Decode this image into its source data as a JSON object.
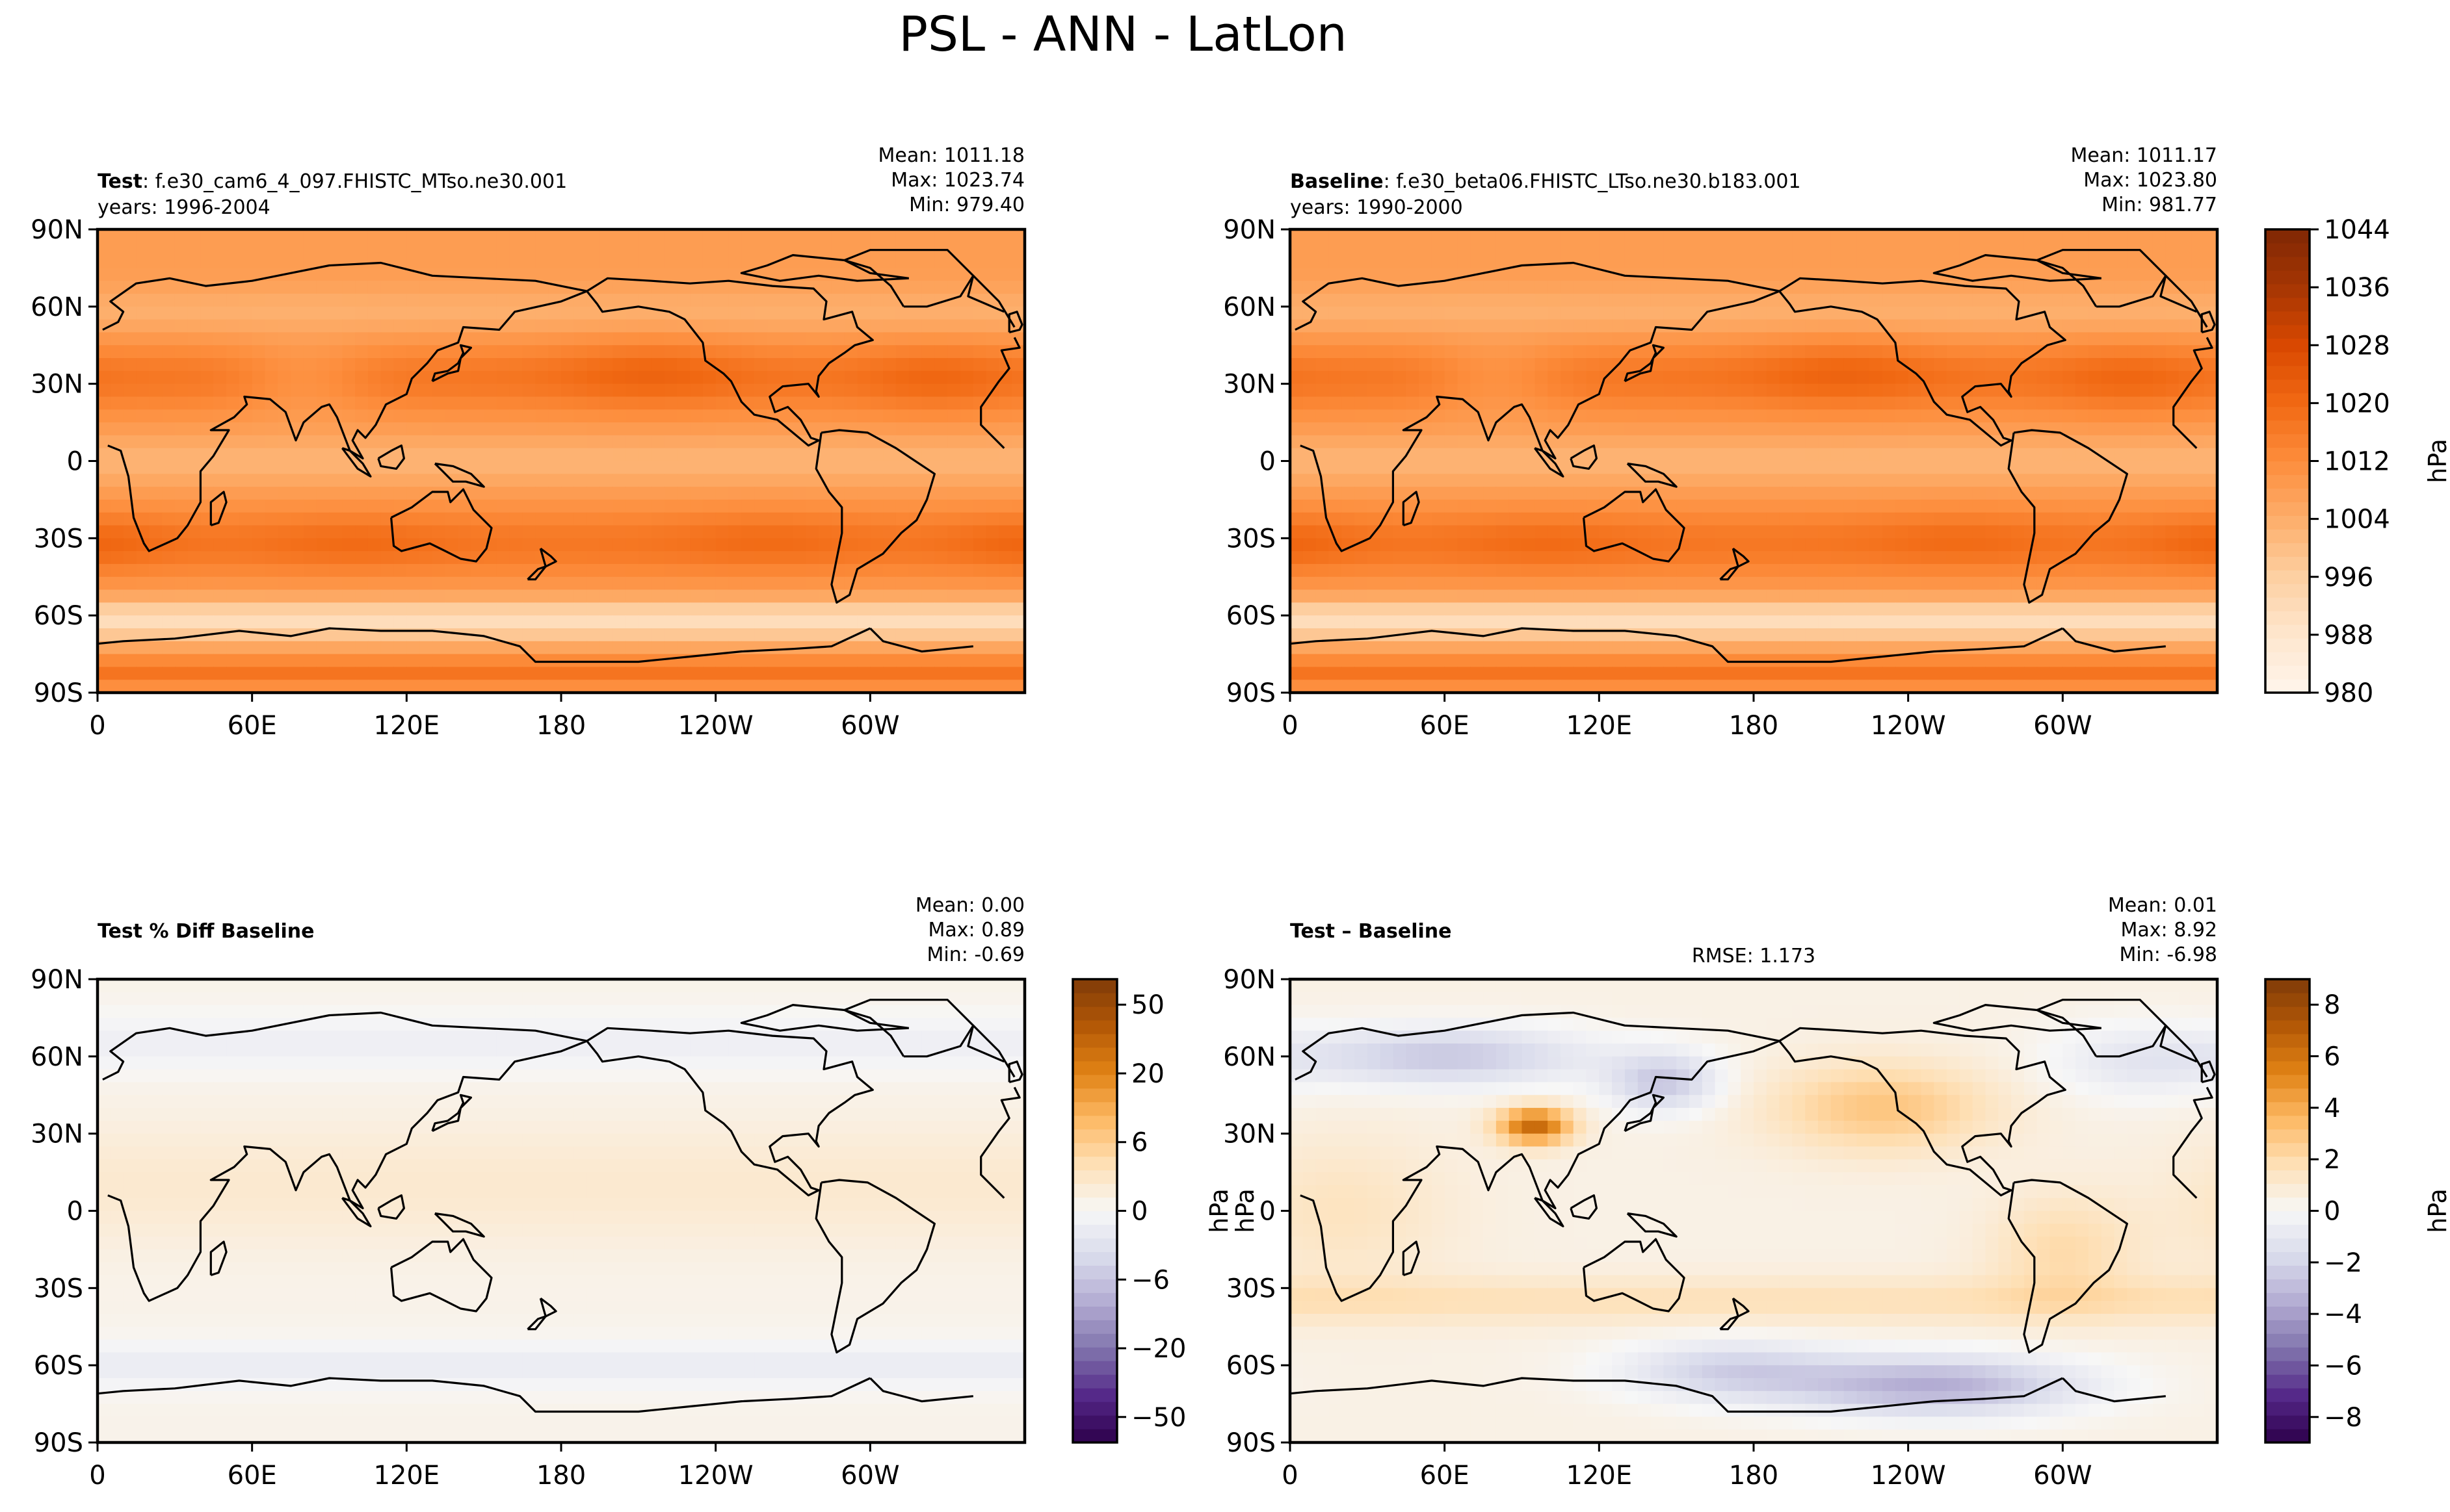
{
  "figure": {
    "title": "PSL - ANN - LatLon"
  },
  "panels": [
    {
      "id": "test",
      "label_bold": "Test",
      "label_rest": ": f.e30_cam6_4_097.FHISTC_MTso.ne30.001",
      "years": "years: 1996-2004",
      "center_text": "",
      "stats": [
        "Mean: 1011.18",
        "Max: 1023.74",
        "Min: 979.40"
      ],
      "field": "abs"
    },
    {
      "id": "baseline",
      "label_bold": "Baseline",
      "label_rest": ": f.e30_beta06.FHISTC_LTso.ne30.b183.001",
      "years": "years: 1990-2000",
      "center_text": "",
      "stats": [
        "Mean: 1011.17",
        "Max: 1023.80",
        "Min: 981.77"
      ],
      "field": "abs"
    },
    {
      "id": "pctdiff",
      "label_bold": "Test % Diff Baseline",
      "label_rest": "",
      "years": "",
      "center_text": "",
      "stats": [
        "Mean:  0.00",
        "Max:  0.89",
        "Min: -0.69"
      ],
      "field": "pct"
    },
    {
      "id": "diff",
      "label_bold": "Test – Baseline",
      "label_rest": "",
      "years": "",
      "center_text": "RMSE: 1.173",
      "stats": [
        "Mean:  0.01",
        "Max:  8.92",
        "Min: -6.98"
      ],
      "field": "diff"
    }
  ],
  "axes": {
    "lat_ticks": [
      "90N",
      "60N",
      "30N",
      "0",
      "30S",
      "60S",
      "90S"
    ],
    "lon_ticks": [
      "0",
      "60E",
      "120E",
      "180",
      "120W",
      "60W"
    ]
  },
  "colorbars": [
    {
      "id": "abs",
      "unit_label": "hPa",
      "tick_labels": [
        "1044",
        "1036",
        "1028",
        "1020",
        "1012",
        "1004",
        "996",
        "988",
        "980"
      ],
      "colors": [
        "#fff5eb",
        "#fee6ce",
        "#fdd0a2",
        "#fdae6b",
        "#fd8d3c",
        "#f16913",
        "#d94801",
        "#a63603",
        "#7f2704"
      ]
    },
    {
      "id": "pct",
      "unit_label": "hPa",
      "tick_labels": [
        "50",
        "20",
        "6",
        "0",
        "−6",
        "−20",
        "−50"
      ],
      "colors": [
        "#2d004b",
        "#542788",
        "#8073ac",
        "#b2abd2",
        "#d8daeb",
        "#f7f7f7",
        "#fee0b6",
        "#fdb863",
        "#e08214",
        "#b35806",
        "#7f3b08"
      ]
    },
    {
      "id": "diff",
      "unit_label": "hPa",
      "tick_labels": [
        "8",
        "6",
        "4",
        "2",
        "0",
        "−2",
        "−4",
        "−6",
        "−8"
      ],
      "colors": [
        "#2d004b",
        "#542788",
        "#8073ac",
        "#b2abd2",
        "#d8daeb",
        "#f7f7f7",
        "#fee0b6",
        "#fdb863",
        "#e08214",
        "#b35806",
        "#7f3b08"
      ]
    }
  ]
}
